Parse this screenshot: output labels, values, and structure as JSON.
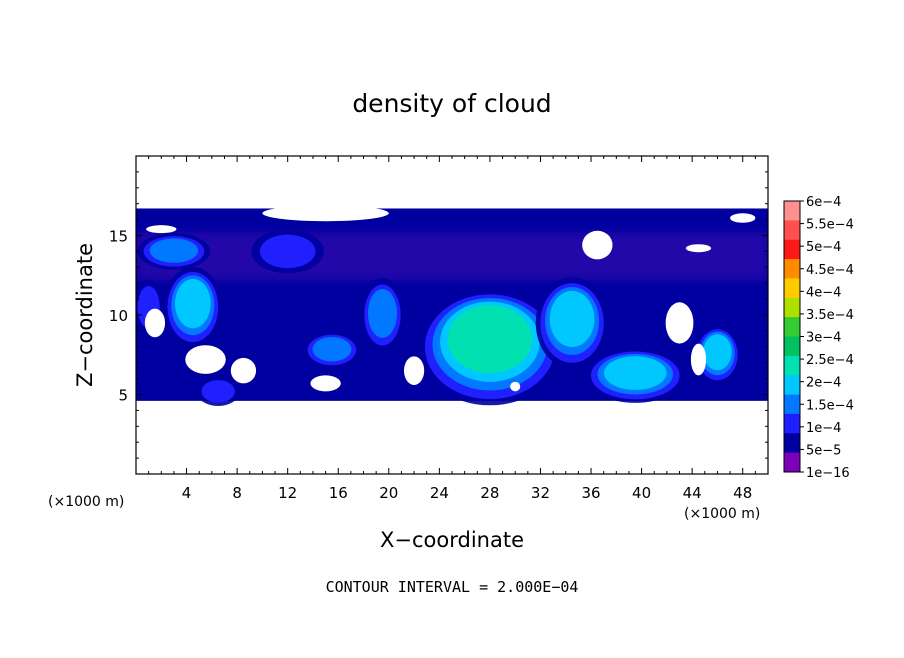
{
  "chart_data": {
    "type": "heatmap",
    "title": "density of cloud",
    "xlabel": "X−coordinate",
    "ylabel": "Z−coordinate",
    "x_unit": "(×1000 m)",
    "y_unit": "(×1000 m)",
    "xlim": [
      0,
      50
    ],
    "ylim": [
      0,
      20
    ],
    "x_ticks": [
      4,
      8,
      12,
      16,
      20,
      24,
      28,
      32,
      36,
      40,
      44,
      48
    ],
    "y_ticks": [
      5,
      10,
      15
    ],
    "footer": "CONTOUR INTERVAL = 2.000E−04",
    "colorbar": {
      "labels": [
        "6e−4",
        "5.5e−4",
        "5e−4",
        "4.5e−4",
        "4e−4",
        "3.5e−4",
        "3e−4",
        "2.5e−4",
        "2e−4",
        "1.5e−4",
        "1e−4",
        "5e−5",
        "1e−16"
      ],
      "colors": [
        "#ff9090",
        "#ff5050",
        "#ff1a1a",
        "#ff8c00",
        "#ffcc00",
        "#b0e000",
        "#33cc33",
        "#00c060",
        "#00e0b0",
        "#00c8ff",
        "#0078ff",
        "#2020ff",
        "#0000a0",
        "#7b00b8"
      ]
    },
    "cloud_layer": {
      "z_bottom": 4.6,
      "z_top": 16.7
    },
    "cells": [
      {
        "x": 4.5,
        "z": 10.5,
        "rx": 2.0,
        "rz": 2.2,
        "value": 0.00015
      },
      {
        "x": 15.5,
        "z": 7.8,
        "rx": 2.0,
        "rz": 1.0,
        "value": 0.0001
      },
      {
        "x": 19.5,
        "z": 10.0,
        "rx": 1.5,
        "rz": 2.0,
        "value": 0.0001
      },
      {
        "x": 28.0,
        "z": 8.0,
        "rx": 5.0,
        "rz": 3.2,
        "value": 0.0002
      },
      {
        "x": 34.5,
        "z": 9.5,
        "rx": 2.5,
        "rz": 2.5,
        "value": 0.00015
      },
      {
        "x": 39.5,
        "z": 6.2,
        "rx": 3.5,
        "rz": 1.5,
        "value": 0.00015
      },
      {
        "x": 46.0,
        "z": 7.5,
        "rx": 1.6,
        "rz": 1.6,
        "value": 0.00015
      },
      {
        "x": 3.0,
        "z": 14.0,
        "rx": 2.5,
        "rz": 1.0,
        "value": 0.0001
      },
      {
        "x": 1.0,
        "z": 10.5,
        "rx": 1.0,
        "rz": 1.5,
        "value": 5e-05
      },
      {
        "x": 6.5,
        "z": 5.2,
        "rx": 1.5,
        "rz": 0.8,
        "value": 5e-05
      },
      {
        "x": 12.0,
        "z": 14.0,
        "rx": 2.5,
        "rz": 1.2,
        "value": 5e-05
      }
    ]
  }
}
